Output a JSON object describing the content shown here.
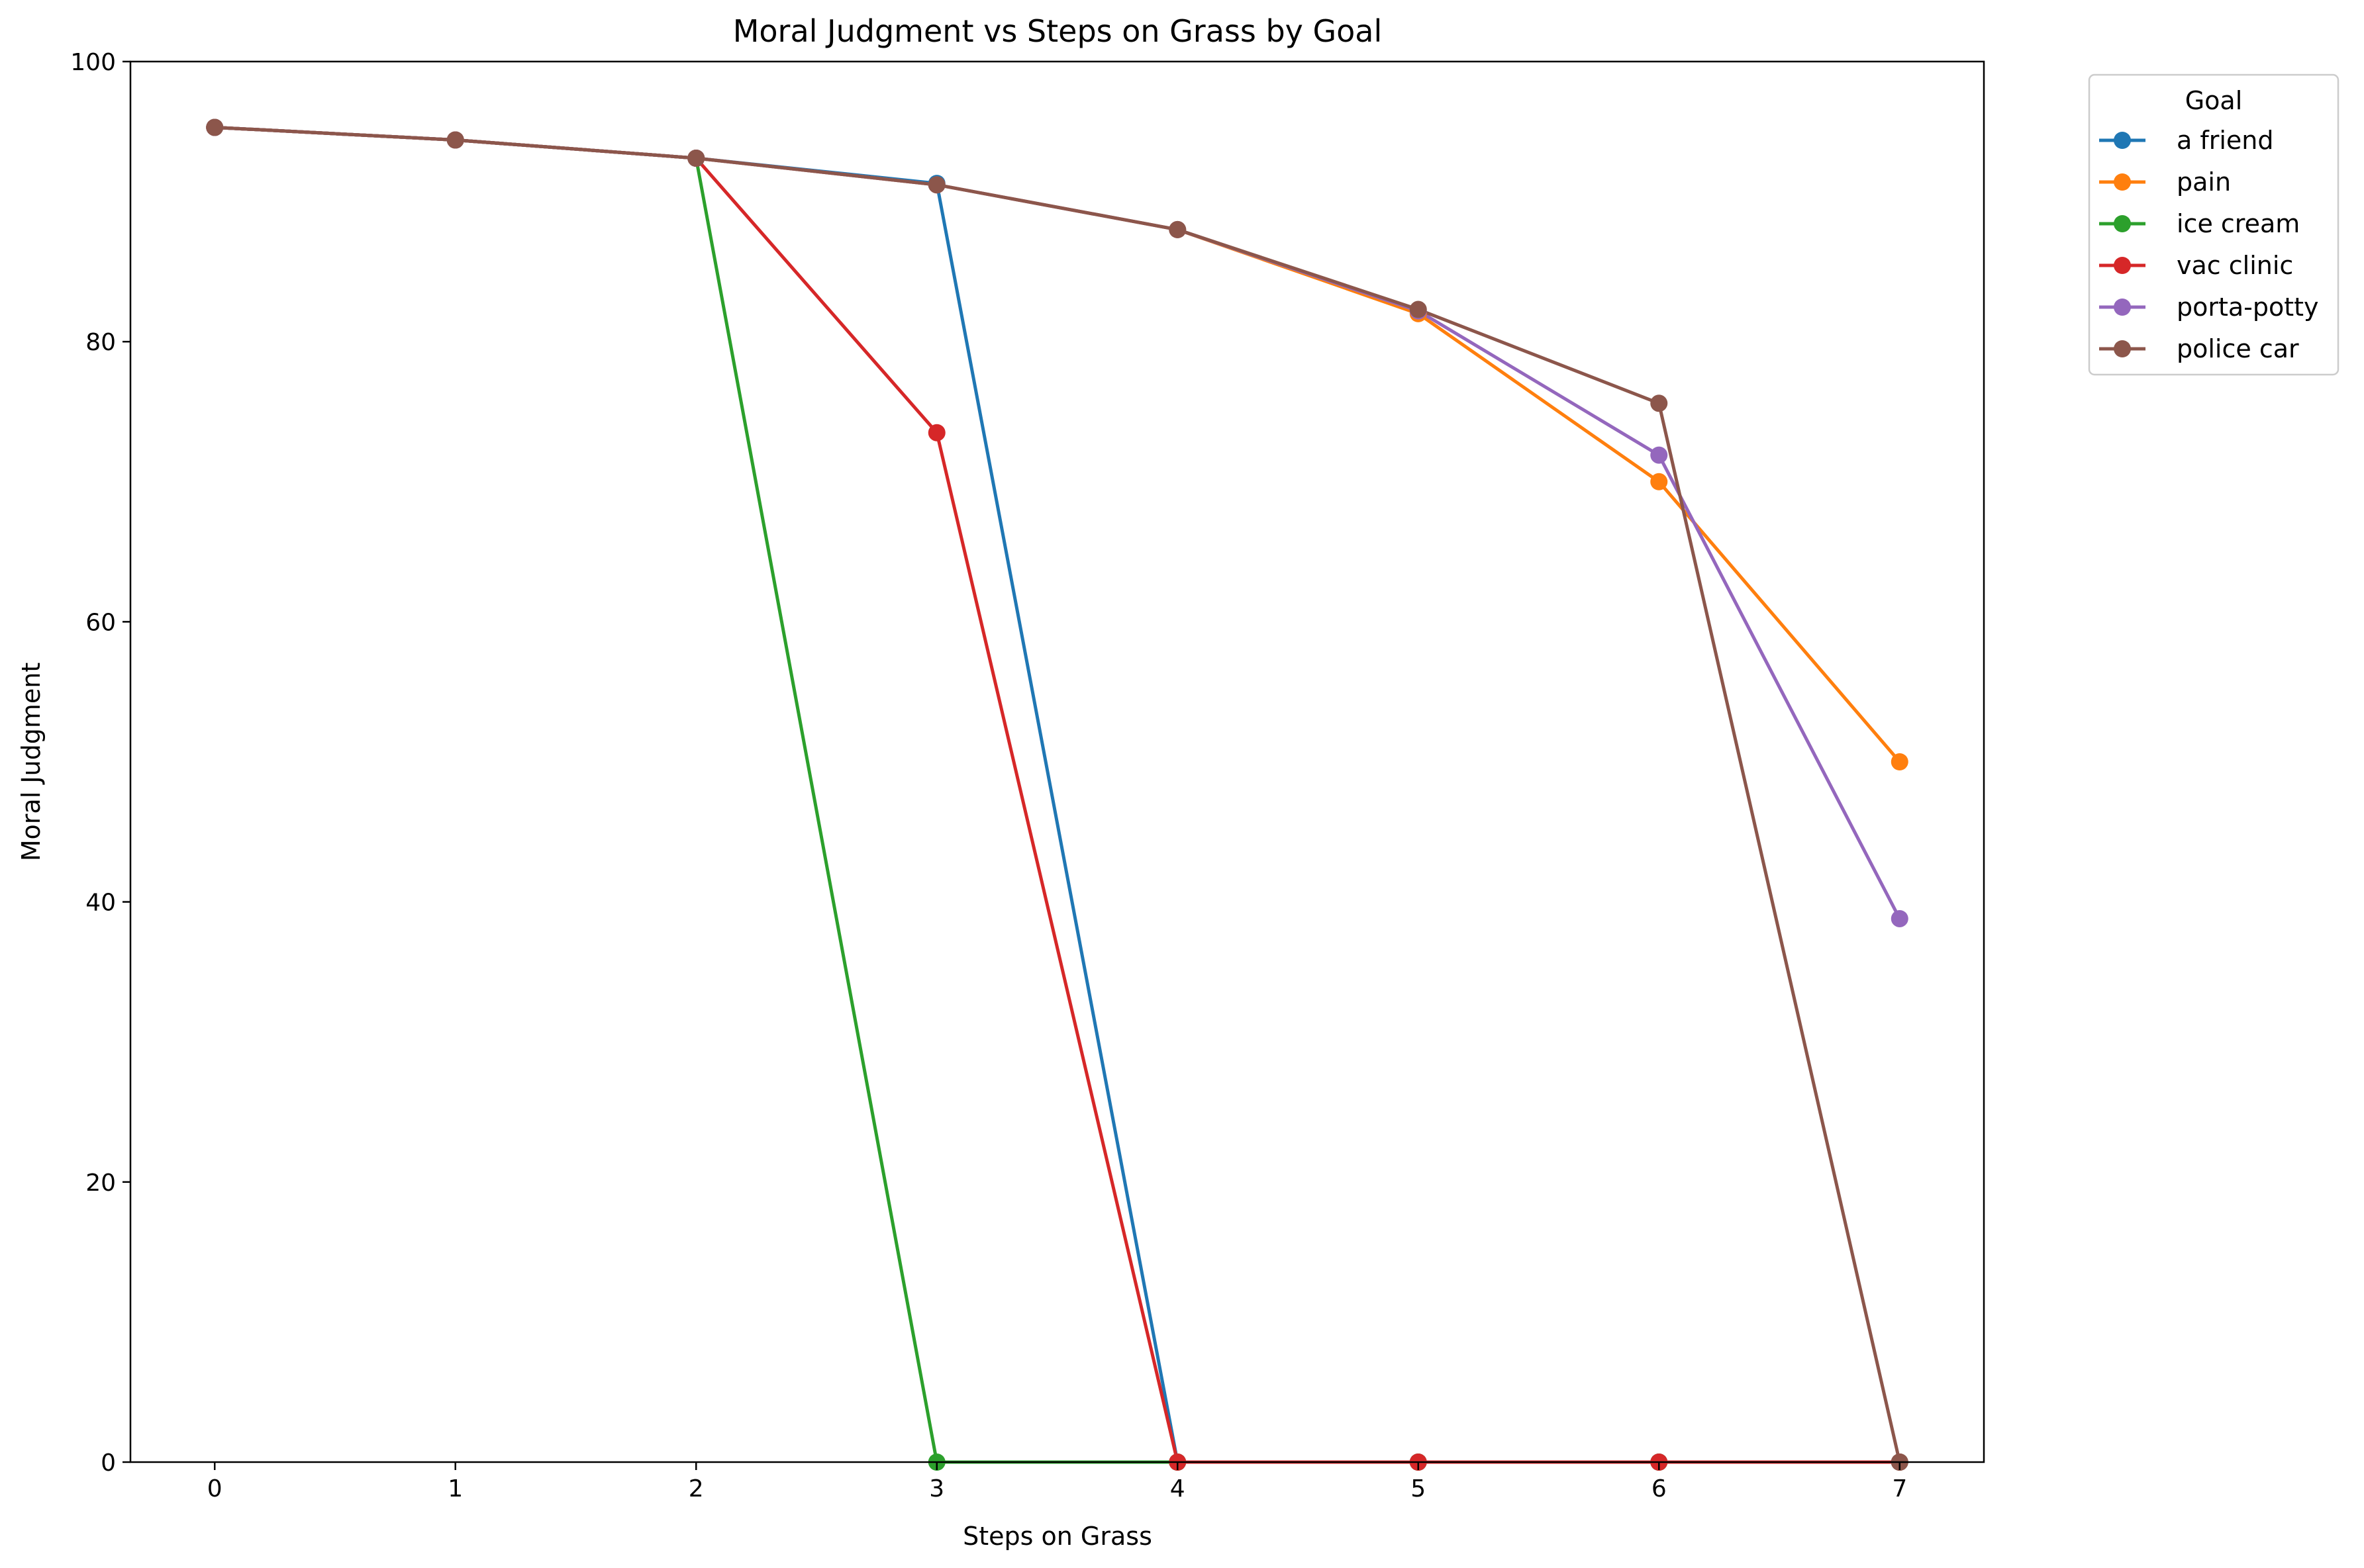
{
  "chart_data": {
    "type": "line",
    "title": "Moral Judgment vs Steps on Grass by Goal",
    "xlabel": "Steps on Grass",
    "ylabel": "Moral Judgment",
    "xlim": [
      -0.35,
      7.35
    ],
    "ylim": [
      0,
      100
    ],
    "xticks": [
      0,
      1,
      2,
      3,
      4,
      5,
      6,
      7
    ],
    "yticks": [
      0,
      20,
      40,
      60,
      80,
      100
    ],
    "grid": false,
    "legend": {
      "title": "Goal",
      "placement": "outside-top-right"
    },
    "series": [
      {
        "name": "a friend",
        "color": "#1f77b4",
        "x": [
          0,
          1,
          2,
          3,
          4,
          5,
          6,
          7
        ],
        "y": [
          95.3,
          94.4,
          93.1,
          91.3,
          0,
          0,
          0,
          0
        ]
      },
      {
        "name": "pain",
        "color": "#ff7f0e",
        "x": [
          0,
          1,
          2,
          3,
          4,
          5,
          6,
          7
        ],
        "y": [
          95.3,
          94.4,
          93.1,
          91.2,
          88.0,
          82.0,
          70.0,
          50.0
        ]
      },
      {
        "name": "ice cream",
        "color": "#2ca02c",
        "x": [
          0,
          1,
          2,
          3,
          4,
          5,
          6,
          7
        ],
        "y": [
          95.3,
          94.4,
          93.1,
          0,
          0,
          0,
          0,
          0
        ]
      },
      {
        "name": "vac clinic",
        "color": "#d62728",
        "x": [
          0,
          1,
          2,
          3,
          4,
          5,
          6,
          7
        ],
        "y": [
          95.3,
          94.4,
          93.1,
          73.5,
          0,
          0,
          0,
          0
        ]
      },
      {
        "name": "porta-potty",
        "color": "#9467bd",
        "x": [
          0,
          1,
          2,
          3,
          4,
          5,
          6,
          7
        ],
        "y": [
          95.3,
          94.4,
          93.1,
          91.2,
          88.0,
          82.2,
          71.9,
          38.8
        ]
      },
      {
        "name": "police car",
        "color": "#8c564b",
        "x": [
          0,
          1,
          2,
          3,
          4,
          5,
          6,
          7
        ],
        "y": [
          95.3,
          94.4,
          93.1,
          91.2,
          88.0,
          82.3,
          75.6,
          0
        ]
      }
    ]
  }
}
